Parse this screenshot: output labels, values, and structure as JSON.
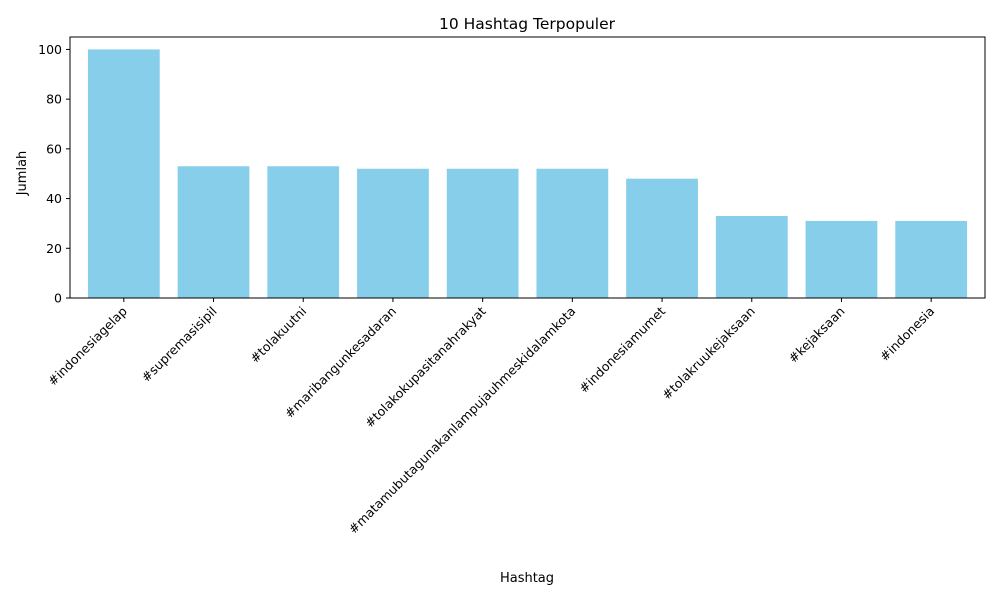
{
  "chart_data": {
    "type": "bar",
    "title": "10 Hashtag Terpopuler",
    "xlabel": "Hashtag",
    "ylabel": "Jumlah",
    "categories": [
      "#indonesiagelap",
      "#supremasisipil",
      "#tolakuutni",
      "#maribangunkesadaran",
      "#tolakokupasitanahrakyat",
      "#matamubutagunakanlampujauhmeskidalamkota",
      "#indonesiamumet",
      "#tolakruukejaksaan",
      "#kejaksaan",
      "#indonesia"
    ],
    "values": [
      100,
      53,
      53,
      52,
      52,
      52,
      48,
      33,
      31,
      31
    ],
    "ylim": [
      0,
      105
    ],
    "yticks": [
      "0",
      "20",
      "40",
      "60",
      "80",
      "100"
    ],
    "bar_color": "#87ceeb",
    "grid": false,
    "legend": "none"
  }
}
